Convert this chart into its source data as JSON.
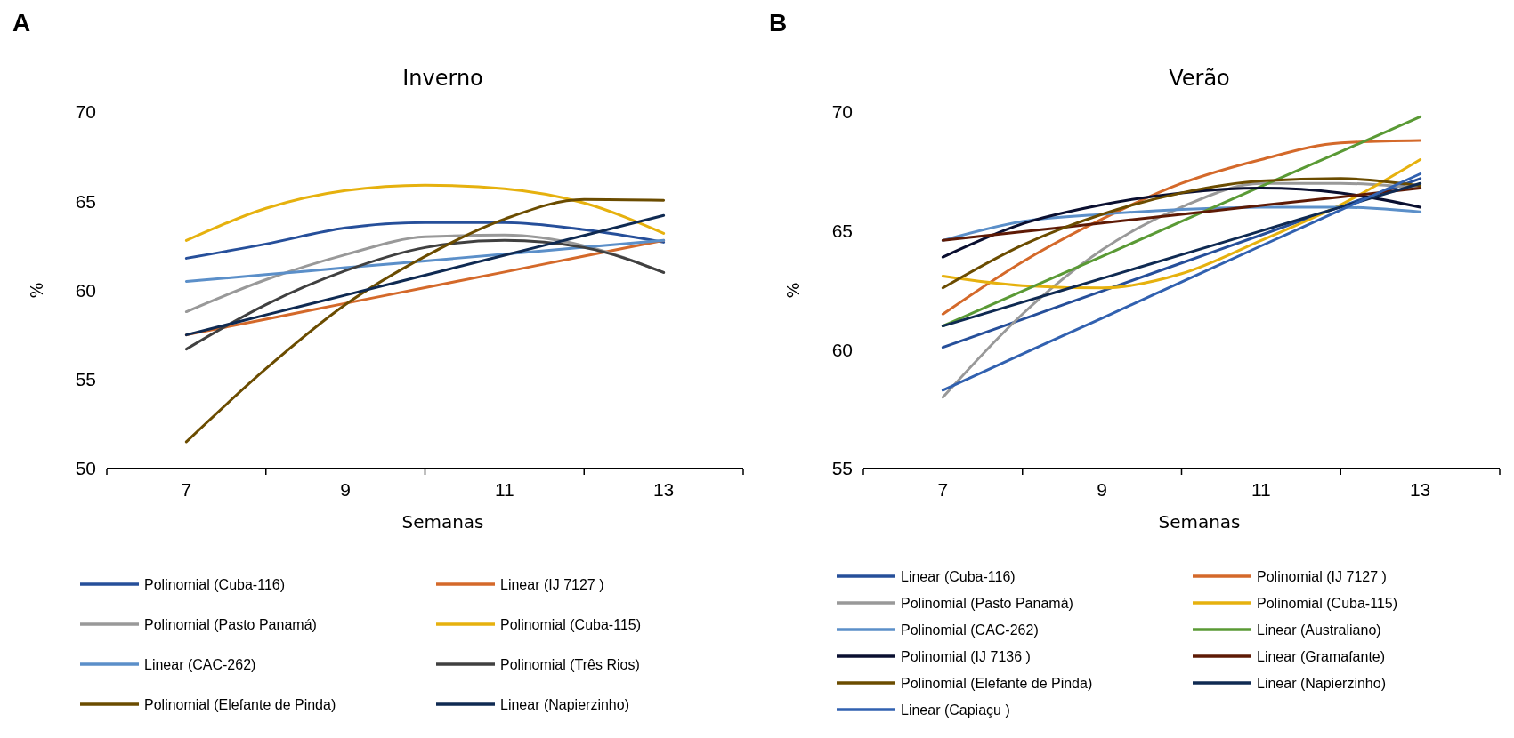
{
  "chart_data": [
    {
      "type": "line",
      "title": "Inverno",
      "xlabel": "Semanas",
      "ylabel": "%",
      "annotations": [
        "A"
      ],
      "x": [
        7,
        8,
        9,
        10,
        11,
        12,
        13
      ],
      "xlim": [
        6,
        14
      ],
      "xticks": [
        {
          "value": 6,
          "label": null
        },
        7,
        {
          "value": 8,
          "label": null
        },
        9,
        {
          "value": 10,
          "label": null
        },
        11,
        {
          "value": 12,
          "label": null
        },
        13,
        {
          "value": 14,
          "label": null
        }
      ],
      "ylim": [
        50,
        70
      ],
      "yticks": [
        50,
        55,
        60,
        65,
        70
      ],
      "grid": false,
      "legend": "bottom",
      "marker": "none",
      "line_style": "solid",
      "series": [
        {
          "name": "Polinomial (Cuba-116)",
          "color": "#264f9a",
          "values": [
            61.8,
            62.6,
            63.5,
            63.8,
            63.8,
            63.4,
            62.7
          ]
        },
        {
          "name": "Linear (IJ 7127 )",
          "color": "#d4692a",
          "values": [
            57.5,
            58.38,
            59.27,
            60.15,
            61.03,
            61.92,
            62.8
          ]
        },
        {
          "name": "Polinomial (Pasto Panamá)",
          "color": "#999999",
          "values": [
            58.8,
            60.6,
            62.0,
            63.0,
            63.1,
            62.5,
            61.0
          ]
        },
        {
          "name": "Polinomial (Cuba-115)",
          "color": "#e6b10e",
          "values": [
            62.8,
            64.6,
            65.6,
            65.9,
            65.7,
            64.9,
            63.2
          ]
        },
        {
          "name": "Linear (CAC-262)",
          "color": "#5b8fc9",
          "values": [
            60.5,
            60.88,
            61.27,
            61.65,
            62.03,
            62.42,
            62.8
          ]
        },
        {
          "name": "Polinomial (Três Rios)",
          "color": "#404040",
          "values": [
            56.7,
            59.2,
            61.1,
            62.4,
            62.8,
            62.4,
            61.0
          ]
        },
        {
          "name": "Polinomial (Elefante de Pinda)",
          "color": "#6b4c00",
          "values": [
            51.5,
            55.6,
            59.2,
            61.9,
            64.0,
            65.1,
            65.05
          ]
        },
        {
          "name": "Linear (Napierzinho)",
          "color": "#0f2a52",
          "values": [
            57.5,
            58.62,
            59.73,
            60.85,
            61.97,
            63.08,
            64.2
          ]
        }
      ]
    },
    {
      "type": "line",
      "title": "Verão",
      "xlabel": "Semanas",
      "ylabel": "%",
      "annotations": [
        "B"
      ],
      "x": [
        7,
        8,
        9,
        10,
        11,
        12,
        13
      ],
      "xlim": [
        6,
        14
      ],
      "xticks": [
        {
          "value": 6,
          "label": null
        },
        7,
        {
          "value": 8,
          "label": null
        },
        9,
        {
          "value": 10,
          "label": null
        },
        11,
        {
          "value": 12,
          "label": null
        },
        13,
        {
          "value": 14,
          "label": null
        }
      ],
      "ylim": [
        55,
        70
      ],
      "yticks": [
        55,
        60,
        65,
        70
      ],
      "grid": false,
      "legend": "bottom",
      "marker": "none",
      "line_style": "solid",
      "series": [
        {
          "name": "Linear (Cuba-116)",
          "color": "#264f9a",
          "values": [
            60.1,
            61.28,
            62.47,
            63.65,
            64.83,
            66.02,
            67.2
          ]
        },
        {
          "name": "Polinomial (IJ 7127 )",
          "color": "#d4692a",
          "values": [
            61.5,
            63.7,
            65.5,
            67.0,
            68.0,
            68.7,
            68.8
          ]
        },
        {
          "name": "Polinomial (Pasto Panamá)",
          "color": "#999999",
          "values": [
            58.0,
            61.5,
            64.2,
            66.0,
            67.0,
            67.0,
            66.8
          ]
        },
        {
          "name": "Polinomial (Cuba-115)",
          "color": "#e6b10e",
          "values": [
            63.1,
            62.7,
            62.6,
            63.2,
            64.6,
            66.1,
            68.0
          ]
        },
        {
          "name": "Polinomial (CAC-262)",
          "color": "#5b8fc9",
          "values": [
            64.6,
            65.4,
            65.7,
            65.9,
            66.0,
            66.0,
            65.8
          ]
        },
        {
          "name": "Linear (Australiano)",
          "color": "#5a9a35",
          "values": [
            61.0,
            62.47,
            63.93,
            65.4,
            66.87,
            68.33,
            69.8
          ]
        },
        {
          "name": "Polinomial (IJ 7136 )",
          "color": "#0a0f30",
          "values": [
            63.9,
            65.3,
            66.1,
            66.6,
            66.8,
            66.6,
            66.0
          ]
        },
        {
          "name": "Linear (Gramafante)",
          "color": "#5e1a05",
          "values": [
            64.6,
            64.97,
            65.33,
            65.7,
            66.07,
            66.43,
            66.8
          ]
        },
        {
          "name": "Polinomial (Elefante de Pinda)",
          "color": "#6b4c00",
          "values": [
            62.6,
            64.4,
            65.7,
            66.6,
            67.1,
            67.2,
            66.9
          ]
        },
        {
          "name": "Linear (Napierzinho)",
          "color": "#0f2a52",
          "values": [
            61.0,
            62.0,
            63.0,
            64.0,
            65.0,
            66.0,
            67.0
          ]
        },
        {
          "name": "Linear (Capiaçu )",
          "color": "#3161b0",
          "values": [
            58.3,
            59.82,
            61.33,
            62.85,
            64.37,
            65.88,
            67.4
          ]
        }
      ]
    }
  ]
}
